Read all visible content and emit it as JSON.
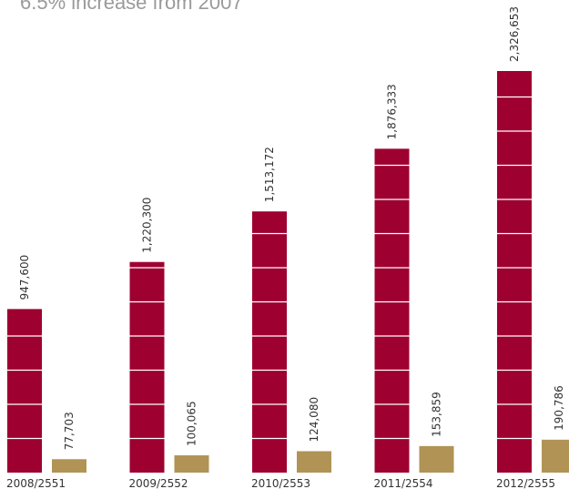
{
  "chart_data": {
    "type": "bar",
    "subtitle": "6.5% increase from 2007",
    "categories": [
      "2008/2551",
      "2009/2552",
      "2010/2553",
      "2011/2554",
      "2012/2555"
    ],
    "series": [
      {
        "values": [
          947600,
          1220300,
          1513172,
          1876333,
          2326653
        ],
        "labels": [
          "947,600",
          "1,220,300",
          "1,513,172",
          "1,876,333",
          "2,326,653"
        ],
        "color": "#9e0030"
      },
      {
        "values": [
          77703,
          100065,
          124080,
          153859,
          190786
        ],
        "labels": [
          "77,703",
          "100,065",
          "124,080",
          "153,859",
          "190,786"
        ],
        "color": "#b09355"
      }
    ],
    "grid": false,
    "legend": "none"
  }
}
